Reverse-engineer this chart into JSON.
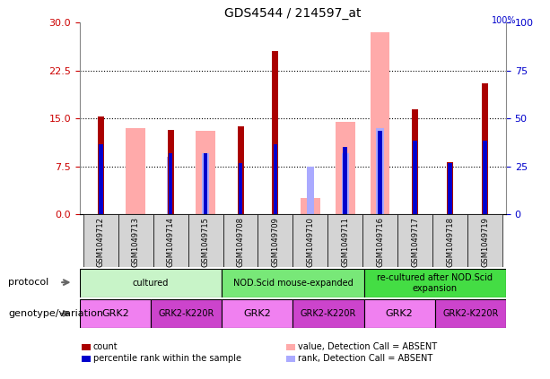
{
  "title": "GDS4544 / 214597_at",
  "samples": [
    "GSM1049712",
    "GSM1049713",
    "GSM1049714",
    "GSM1049715",
    "GSM1049708",
    "GSM1049709",
    "GSM1049710",
    "GSM1049711",
    "GSM1049716",
    "GSM1049717",
    "GSM1049718",
    "GSM1049719"
  ],
  "count_values": [
    15.3,
    0,
    13.2,
    0,
    13.8,
    25.5,
    0,
    0,
    0,
    16.5,
    8.2,
    20.5
  ],
  "percentile_rank": [
    11.0,
    0,
    9.5,
    9.5,
    8.0,
    11.0,
    0,
    10.5,
    13.0,
    11.5,
    8.0,
    11.5
  ],
  "absent_value": [
    0,
    13.5,
    0,
    13.0,
    0,
    0,
    2.5,
    14.5,
    28.5,
    0,
    0,
    0
  ],
  "absent_rank": [
    0,
    0,
    9.0,
    9.5,
    0,
    0,
    7.5,
    9.5,
    13.5,
    0,
    0,
    0
  ],
  "ylim_left": [
    0,
    30
  ],
  "ylim_right": [
    0,
    100
  ],
  "yticks_left": [
    0,
    7.5,
    15,
    22.5,
    30
  ],
  "yticks_right": [
    0,
    25,
    50,
    75,
    100
  ],
  "color_count": "#aa0000",
  "color_percentile": "#0000cc",
  "color_absent_value": "#ffaaaa",
  "color_absent_rank": "#aaaaff",
  "left_tick_color": "#cc0000",
  "right_tick_color": "#0000cc",
  "proto_defs": [
    {
      "label": "cultured",
      "start": 0,
      "end": 4,
      "color": "#c8f4c8"
    },
    {
      "label": "NOD.Scid mouse-expanded",
      "start": 4,
      "end": 8,
      "color": "#78e878"
    },
    {
      "label": "re-cultured after NOD.Scid\nexpansion",
      "start": 8,
      "end": 12,
      "color": "#44dd44"
    }
  ],
  "geno_defs": [
    {
      "label": "GRK2",
      "start": 0,
      "end": 2,
      "color": "#f080f0",
      "fontsize": 8
    },
    {
      "label": "GRK2-K220R",
      "start": 2,
      "end": 4,
      "color": "#cc44cc",
      "fontsize": 7
    },
    {
      "label": "GRK2",
      "start": 4,
      "end": 6,
      "color": "#f080f0",
      "fontsize": 8
    },
    {
      "label": "GRK2-K220R",
      "start": 6,
      "end": 8,
      "color": "#cc44cc",
      "fontsize": 7
    },
    {
      "label": "GRK2",
      "start": 8,
      "end": 10,
      "color": "#f080f0",
      "fontsize": 8
    },
    {
      "label": "GRK2-K220R",
      "start": 10,
      "end": 12,
      "color": "#cc44cc",
      "fontsize": 7
    }
  ],
  "legend_items": [
    {
      "label": "count",
      "color": "#aa0000"
    },
    {
      "label": "percentile rank within the sample",
      "color": "#0000cc"
    },
    {
      "label": "value, Detection Call = ABSENT",
      "color": "#ffaaaa"
    },
    {
      "label": "rank, Detection Call = ABSENT",
      "color": "#aaaaff"
    }
  ],
  "protocol_label": "protocol",
  "genotype_label": "genotype/variation",
  "percent_label": "100%"
}
